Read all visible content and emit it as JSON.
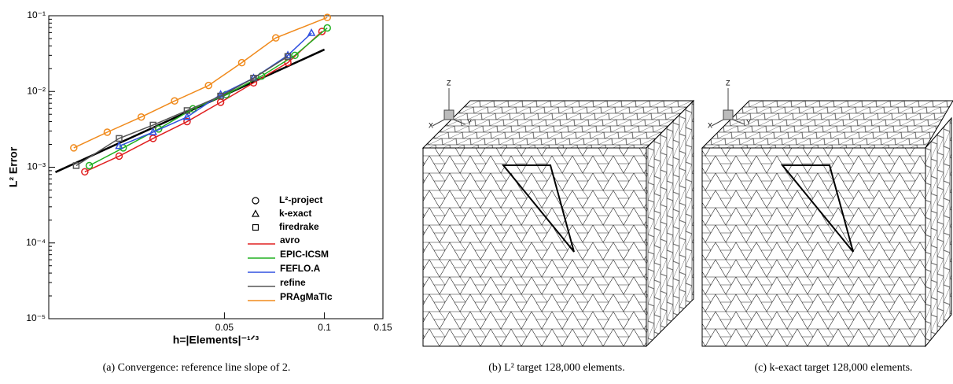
{
  "chart_data": {
    "type": "line",
    "y_label": "L² Error",
    "x_label": "h=|Elements|⁻¹ᐟ³",
    "xlog": true,
    "ylog": true,
    "xlim": [
      0.0148,
      0.15
    ],
    "ylim": [
      1e-05,
      0.1
    ],
    "xticks": [
      0.05,
      0.1,
      0.15
    ],
    "yticks": [
      {
        "value": 1e-05,
        "label": "10⁻⁵"
      },
      {
        "value": 0.0001,
        "label": "10⁻⁴"
      },
      {
        "value": 0.001,
        "label": "10⁻³"
      },
      {
        "value": 0.01,
        "label": "10⁻²"
      },
      {
        "value": 0.1,
        "label": "10⁻¹"
      }
    ],
    "marker_legend": [
      {
        "marker": "circle",
        "label": "L²-project"
      },
      {
        "marker": "triangle",
        "label": "k-exact"
      },
      {
        "marker": "square",
        "label": "firedrake"
      }
    ],
    "series": [
      {
        "name": "avro",
        "color": "#e02020",
        "marker": "circle",
        "x": [
          0.019,
          0.0241,
          0.0305,
          0.0386,
          0.0487,
          0.0612,
          0.0776,
          0.0983
        ],
        "values": [
          0.00087,
          0.0014,
          0.0024,
          0.004,
          0.0072,
          0.013,
          0.024,
          0.062
        ]
      },
      {
        "name": "EPIC-ICSM",
        "color": "#20b020",
        "marker": "circle",
        "x": [
          0.0196,
          0.0248,
          0.0317,
          0.0402,
          0.0506,
          0.0647,
          0.0815,
          0.102
        ],
        "values": [
          0.00105,
          0.0018,
          0.0032,
          0.0059,
          0.0091,
          0.016,
          0.03,
          0.069
        ]
      },
      {
        "name": "FEFLO.A",
        "color": "#3050e0",
        "marker": "triangle",
        "x": [
          0.0241,
          0.0305,
          0.0386,
          0.0487,
          0.0612,
          0.0776,
          0.0914
        ],
        "values": [
          0.0019,
          0.0029,
          0.0046,
          0.0091,
          0.015,
          0.03,
          0.059
        ]
      },
      {
        "name": "refine",
        "color": "#555555",
        "marker": "square",
        "x": [
          0.0179,
          0.0241,
          0.0305,
          0.0386,
          0.0487,
          0.0612,
          0.0776
        ],
        "values": [
          0.00105,
          0.0024,
          0.0036,
          0.0056,
          0.0087,
          0.015,
          0.029
        ]
      },
      {
        "name": "PRAgMaTIc",
        "color": "#f08a1c",
        "marker": "circle",
        "x": [
          0.0176,
          0.0222,
          0.0281,
          0.0354,
          0.0448,
          0.0564,
          0.0714,
          0.102
        ],
        "values": [
          0.0018,
          0.0029,
          0.0046,
          0.0075,
          0.012,
          0.024,
          0.051,
          0.095
        ]
      }
    ],
    "reference": {
      "color": "#000000",
      "x": [
        0.0155,
        0.1
      ],
      "values": [
        0.00086,
        0.0358
      ]
    }
  },
  "captions": [
    "(a) Convergence: reference line slope of 2.",
    "(b) L² target 128,000 elements.",
    "(c) k-exact target 128,000 elements."
  ],
  "axis_triad": [
    "X",
    "Y",
    "Z"
  ]
}
